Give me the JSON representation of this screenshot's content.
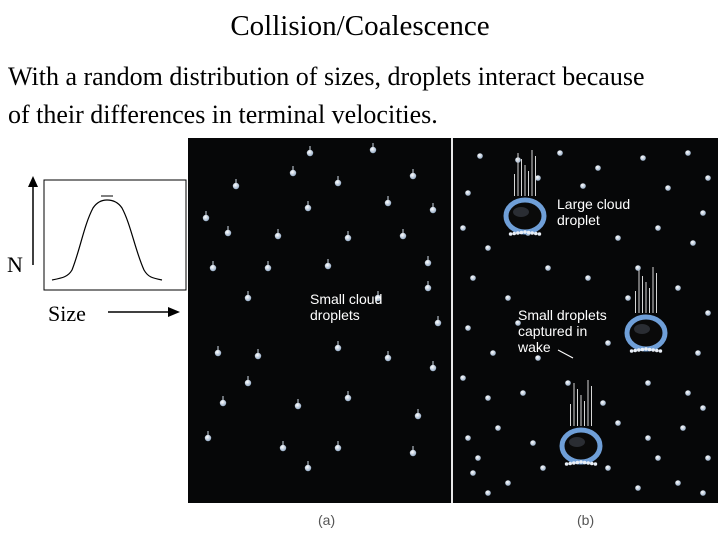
{
  "slide": {
    "title": "Collision/Coalescence",
    "body_line1": "With a random distribution of sizes, droplets interact because",
    "body_line2": "of their differences in terminal velocities."
  },
  "inset_plot": {
    "y_label": "N",
    "x_label": "Size"
  },
  "figure": {
    "panel_a": {
      "label": "(a)",
      "caption_line1": "Small cloud",
      "caption_line2": "droplets"
    },
    "panel_b": {
      "label": "(b)",
      "large_line1": "Large cloud",
      "large_line2": "droplet",
      "small_line1": "Small droplets",
      "small_line2": "captured in",
      "small_line3": "wake"
    }
  },
  "colors": {
    "figure_background": "#060708",
    "droplet_rim": "#6f9fd8",
    "droplet_core": "#0a0a0a"
  }
}
